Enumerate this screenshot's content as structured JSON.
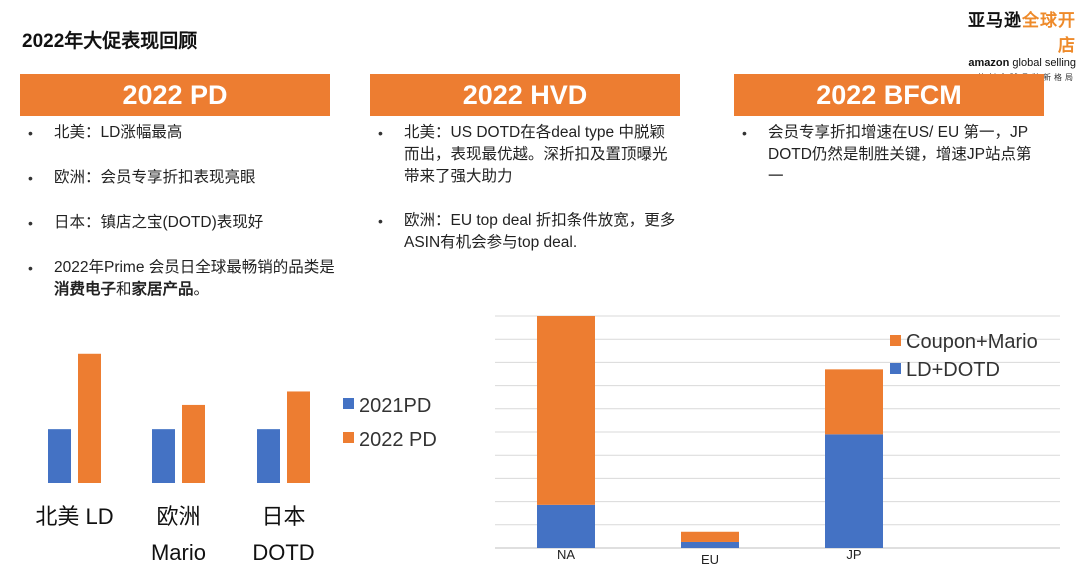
{
  "page": {
    "title": "2022年大促表现回顾"
  },
  "logo": {
    "cn_black": "亚马逊",
    "cn_orange": "全球开店",
    "en_bold": "amazon",
    "en_rest": " global selling",
    "tagline": "共创全球品牌新格局"
  },
  "banners": [
    "2022 PD",
    "2022 HVD",
    "2022 BFCM"
  ],
  "pd_points": {
    "p1": "北美：LD涨幅最高",
    "p2": "欧洲：会员专享折扣表现亮眼",
    "p3": "日本：镇店之宝(DOTD)表现好",
    "p4_a": "2022年Prime 会员日全球最畅销的品类是",
    "p4_b": "消费电子",
    "p4_c": "和",
    "p4_d": "家居产品",
    "p4_e": "。"
  },
  "hvd_points": {
    "p1": "北美：US DOTD在各deal type 中脱颖而出，表现最优越。深折扣及置顶曝光带来了强大助力",
    "p2": "欧洲：EU top deal 折扣条件放宽，更多ASIN有机会参与top deal."
  },
  "bfcm_points": {
    "p1": "会员专享折扣增速在US/ EU 第一，JP DOTD仍然是制胜关键，增速JP站点第一"
  },
  "colors": {
    "blue": "#4472c4",
    "orange": "#ed7d31",
    "grid": "#d9d9d9"
  },
  "chart_data": [
    {
      "type": "bar",
      "title": "",
      "categories": [
        [
          "北美 LD"
        ],
        [
          "欧洲",
          "Mario"
        ],
        [
          "日本",
          "DOTD"
        ]
      ],
      "series": [
        {
          "name": "2021PD",
          "color": "#4472c4",
          "values": [
            1,
            1,
            1
          ]
        },
        {
          "name": "2022 PD",
          "color": "#ed7d31",
          "values": [
            2.4,
            1.45,
            1.7
          ]
        }
      ],
      "ylim": [
        0,
        2.6
      ],
      "legend": "right",
      "xlabel": "",
      "ylabel": ""
    },
    {
      "type": "bar",
      "stacked": true,
      "title": "",
      "categories": [
        "NA",
        "EU",
        "JP"
      ],
      "series": [
        {
          "name": "LD+DOTD",
          "color": "#4472c4",
          "values": [
            9.3,
            1.3,
            24.5
          ]
        },
        {
          "name": "Coupon+Mario",
          "color": "#ed7d31",
          "values": [
            40.7,
            2.2,
            14.0
          ]
        }
      ],
      "ylim": [
        0,
        50
      ],
      "yticks": [
        0,
        5,
        10,
        15,
        20,
        25,
        30,
        35,
        40,
        45,
        50
      ],
      "legend": "top-right",
      "xlabel": "",
      "ylabel": ""
    }
  ]
}
